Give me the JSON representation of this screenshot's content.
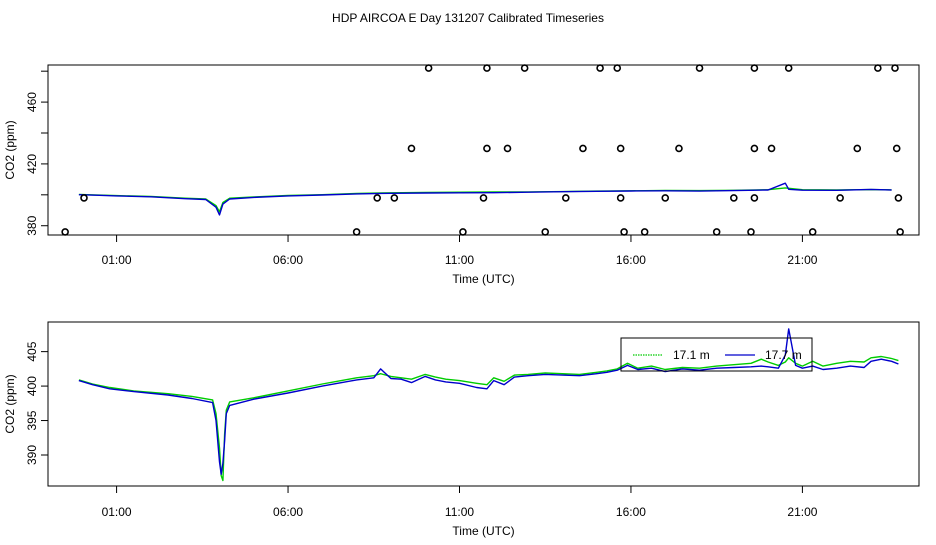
{
  "title": "HDP AIRCOA E  Day 131207  Calibrated Timeseries",
  "chart_data": [
    {
      "type": "line",
      "xlabel": "Time (UTC)",
      "ylabel": "CO2 (ppm)",
      "x_unit": "hours UTC",
      "xlim": [
        -1.0,
        24.4
      ],
      "ylim": [
        374,
        484
      ],
      "x_ticks": [
        1,
        6,
        11,
        16,
        21
      ],
      "x_tick_labels": [
        "01:00",
        "06:00",
        "11:00",
        "16:00",
        "21:00"
      ],
      "y_ticks": [
        380,
        420,
        460
      ],
      "y_tick_labels": [
        "380",
        "420",
        "460"
      ],
      "series": [
        {
          "color": "#00cc00",
          "x": [
            -0.1,
            0.5,
            1.0,
            2.0,
            3.0,
            3.6,
            3.9,
            4.0,
            4.1,
            4.3,
            5.0,
            6.0,
            7.0,
            8.0,
            9.0,
            10.0,
            11.0,
            12.0,
            13.0,
            14.0,
            15.0,
            16.0,
            17.0,
            18.0,
            19.0,
            20.0,
            20.5,
            21.0,
            22.0,
            23.0,
            23.6
          ],
          "y": [
            400.2,
            399.8,
            399.5,
            398.9,
            397.8,
            397.3,
            393,
            389,
            395,
            397.8,
            398.6,
            399.6,
            400.1,
            400.9,
            401.3,
            401.5,
            401.7,
            401.8,
            401.9,
            402.1,
            402.4,
            402.6,
            402.8,
            402.7,
            402.9,
            403.3,
            404.5,
            403.3,
            403.1,
            403.4,
            403.2
          ]
        },
        {
          "color": "#0000cc",
          "x": [
            -0.1,
            0.5,
            1.0,
            2.0,
            3.0,
            3.6,
            3.9,
            4.0,
            4.1,
            4.3,
            5.0,
            6.0,
            7.0,
            8.0,
            9.0,
            10.0,
            11.0,
            12.0,
            13.0,
            14.0,
            15.0,
            16.0,
            17.0,
            18.0,
            19.0,
            20.0,
            20.5,
            20.6,
            21.0,
            22.0,
            23.0,
            23.6
          ],
          "y": [
            400.1,
            399.7,
            399.3,
            398.7,
            397.5,
            397.0,
            392,
            387,
            394,
            397.3,
            398.3,
            399.3,
            399.9,
            400.6,
            401.0,
            401.2,
            401.3,
            401.4,
            401.7,
            402.0,
            402.3,
            402.5,
            402.6,
            402.4,
            402.7,
            403.1,
            407.5,
            403.6,
            403.0,
            402.9,
            403.5,
            403.1
          ]
        },
        {
          "type": "scatter",
          "color": "#000000",
          "x": [
            -0.5,
            0.05,
            8.0,
            8.6,
            9.1,
            9.6,
            10.1,
            11.1,
            11.7,
            11.8,
            11.8,
            12.4,
            12.9,
            13.5,
            14.1,
            14.6,
            15.1,
            15.6,
            15.7,
            15.7,
            15.8,
            16.4,
            17.0,
            17.4,
            18.0,
            18.5,
            19.0,
            19.5,
            19.6,
            19.6,
            19.6,
            20.1,
            20.6,
            21.3,
            22.1,
            22.6,
            23.2,
            23.7,
            23.75,
            23.8,
            23.85
          ],
          "y": [
            376,
            398,
            376,
            398,
            398,
            430,
            482,
            376,
            398,
            430,
            482,
            430,
            482,
            376,
            398,
            430,
            482,
            482,
            430,
            398,
            376,
            376,
            398,
            430,
            482,
            376,
            398,
            376,
            398,
            430,
            482,
            430,
            482,
            376,
            398,
            430,
            482,
            482,
            430,
            398,
            376
          ]
        }
      ]
    },
    {
      "type": "line",
      "xlabel": "Time (UTC)",
      "ylabel": "CO2 (ppm)",
      "x_unit": "hours UTC",
      "xlim": [
        -1.0,
        24.4
      ],
      "ylim": [
        385.5,
        409.3
      ],
      "x_ticks": [
        1,
        6,
        11,
        16,
        21
      ],
      "x_tick_labels": [
        "01:00",
        "06:00",
        "11:00",
        "16:00",
        "21:00"
      ],
      "y_ticks": [
        390,
        395,
        400,
        405
      ],
      "y_tick_labels": [
        "390",
        "395",
        "400",
        "405"
      ],
      "legend": {
        "position": "top-right",
        "entries": [
          {
            "label": "17.1 m",
            "color": "#00cc00"
          },
          {
            "label": "17.7 m",
            "color": "#0000cc"
          }
        ]
      },
      "series": [
        {
          "name": "17.1 m",
          "color": "#00cc00",
          "x": [
            -0.1,
            0.3,
            0.8,
            1.5,
            2.5,
            3.2,
            3.8,
            3.9,
            4.0,
            4.05,
            4.1,
            4.15,
            4.2,
            4.3,
            5.0,
            6.0,
            7.0,
            8.0,
            8.5,
            8.7,
            9.0,
            9.3,
            9.6,
            10.0,
            10.3,
            10.6,
            11.0,
            11.5,
            11.8,
            12.0,
            12.3,
            12.6,
            13.0,
            13.5,
            14.0,
            14.5,
            15.0,
            15.3,
            15.6,
            15.9,
            16.2,
            16.6,
            17.0,
            17.5,
            18.0,
            18.5,
            19.0,
            19.5,
            19.8,
            20.0,
            20.3,
            20.5,
            20.6,
            20.8,
            21.0,
            21.3,
            21.6,
            22.0,
            22.4,
            22.8,
            23.0,
            23.3,
            23.6,
            23.8
          ],
          "y": [
            400.9,
            400.3,
            399.8,
            399.3,
            398.9,
            398.5,
            398.0,
            396.0,
            391.0,
            387.0,
            386.3,
            393.0,
            396.5,
            397.7,
            398.3,
            399.3,
            400.3,
            401.2,
            401.5,
            401.8,
            401.4,
            401.2,
            401.0,
            401.7,
            401.3,
            401.0,
            400.8,
            400.4,
            400.2,
            401.2,
            400.7,
            401.6,
            401.7,
            401.9,
            401.8,
            401.7,
            402.0,
            402.2,
            402.5,
            403.3,
            402.6,
            402.9,
            402.4,
            402.7,
            402.6,
            402.9,
            403.1,
            403.3,
            403.9,
            403.5,
            403.0,
            403.5,
            404.1,
            403.3,
            402.9,
            403.6,
            402.9,
            403.3,
            403.6,
            403.5,
            404.1,
            404.3,
            404.0,
            403.7
          ]
        },
        {
          "name": "17.7 m",
          "color": "#0000cc",
          "x": [
            -0.1,
            0.3,
            0.8,
            1.5,
            2.5,
            3.2,
            3.8,
            3.9,
            4.0,
            4.05,
            4.1,
            4.15,
            4.2,
            4.3,
            5.0,
            6.0,
            7.0,
            8.0,
            8.5,
            8.7,
            9.0,
            9.3,
            9.6,
            10.0,
            10.3,
            10.6,
            11.0,
            11.5,
            11.8,
            12.0,
            12.3,
            12.6,
            13.0,
            13.5,
            14.0,
            14.5,
            15.0,
            15.3,
            15.6,
            15.9,
            16.2,
            16.6,
            17.0,
            17.5,
            18.0,
            18.5,
            19.0,
            19.5,
            19.8,
            20.0,
            20.3,
            20.5,
            20.6,
            20.8,
            21.0,
            21.3,
            21.6,
            22.0,
            22.4,
            22.8,
            23.0,
            23.3,
            23.6,
            23.8
          ],
          "y": [
            400.8,
            400.2,
            399.6,
            399.2,
            398.7,
            398.2,
            397.6,
            395.0,
            389.0,
            387.2,
            388.8,
            392.0,
            396.0,
            397.2,
            398.1,
            399.0,
            400.0,
            400.9,
            401.2,
            402.5,
            401.1,
            401.0,
            400.5,
            401.4,
            400.9,
            400.6,
            400.4,
            399.8,
            399.6,
            400.8,
            400.2,
            401.3,
            401.5,
            401.7,
            401.6,
            401.5,
            401.8,
            402.0,
            402.3,
            403.0,
            402.4,
            402.6,
            402.1,
            402.5,
            402.3,
            402.6,
            402.7,
            402.8,
            402.9,
            402.8,
            402.6,
            404.5,
            408.3,
            403.0,
            402.6,
            402.9,
            402.4,
            402.6,
            402.9,
            402.7,
            403.6,
            403.9,
            403.6,
            403.2
          ]
        }
      ]
    }
  ]
}
